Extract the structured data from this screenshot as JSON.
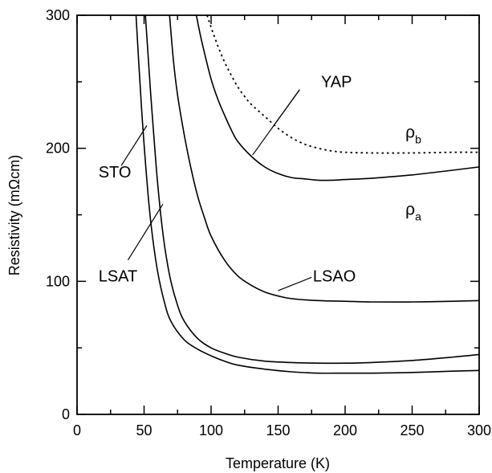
{
  "chart_data": {
    "type": "line",
    "title": "",
    "xlabel": "Temperature (K)",
    "ylabel": "Resistivity (mΩcm)",
    "xlim": [
      0,
      300
    ],
    "ylim": [
      0,
      300
    ],
    "xticks": [
      0,
      50,
      100,
      150,
      200,
      250,
      300
    ],
    "yticks": [
      0,
      100,
      200,
      300
    ],
    "grid": false,
    "legend": "none",
    "series": [
      {
        "name": "STO",
        "style": "solid",
        "x": [
          44,
          46,
          48,
          50,
          53,
          56,
          60,
          65,
          70,
          80,
          90,
          100,
          110,
          120,
          140,
          160,
          180,
          200,
          220,
          250,
          280,
          300
        ],
        "y": [
          300,
          265,
          232,
          203,
          165,
          136,
          108,
          85,
          70,
          56,
          49,
          44,
          40,
          37,
          34,
          32,
          31,
          31,
          31,
          31.5,
          32.5,
          33
        ]
      },
      {
        "name": "LSAT",
        "style": "solid",
        "x": [
          51,
          53,
          55,
          58,
          60,
          63,
          66,
          70,
          75,
          80,
          90,
          100,
          110,
          120,
          140,
          160,
          180,
          200,
          220,
          250,
          280,
          300
        ],
        "y": [
          300,
          270,
          240,
          200,
          175,
          145,
          122,
          100,
          82,
          70,
          57,
          50,
          46,
          43,
          40,
          39,
          38.5,
          38.5,
          39,
          40.5,
          43,
          45
        ]
      },
      {
        "name": "LSAO",
        "style": "solid",
        "x": [
          69,
          72,
          75,
          80,
          85,
          90,
          95,
          100,
          110,
          120,
          130,
          140,
          150,
          160,
          180,
          200,
          220,
          250,
          280,
          300
        ],
        "y": [
          300,
          265,
          240,
          210,
          185,
          164,
          148,
          134,
          116,
          104,
          97,
          92,
          89,
          87,
          85.5,
          85,
          84.5,
          84.5,
          85,
          85.5
        ]
      },
      {
        "name": "YAP ρa",
        "style": "solid",
        "x": [
          89,
          92,
          95,
          100,
          105,
          110,
          115,
          120,
          130,
          140,
          150,
          160,
          170,
          180,
          190,
          200,
          220,
          250,
          280,
          300
        ],
        "y": [
          300,
          285,
          272,
          252,
          237,
          225,
          214,
          205,
          194,
          186,
          181,
          178,
          177,
          176,
          176,
          176.5,
          177.5,
          180,
          183.5,
          186
        ]
      },
      {
        "name": "YAP ρb",
        "style": "dotted",
        "x": [
          97,
          100,
          105,
          110,
          115,
          120,
          125,
          130,
          140,
          150,
          160,
          170,
          180,
          190,
          200,
          220,
          250,
          280,
          300
        ],
        "y": [
          300,
          291,
          277,
          265,
          255,
          246,
          239,
          233,
          224,
          215,
          208,
          203,
          200,
          198,
          197,
          196.5,
          196.5,
          197,
          197
        ]
      }
    ],
    "annotations": [
      {
        "text": "YAP",
        "x": 182,
        "y": 246
      },
      {
        "text": "STO",
        "x": 16,
        "y": 178
      },
      {
        "text": "LSAT",
        "x": 16,
        "y": 100
      },
      {
        "text": "LSAO",
        "x": 176,
        "y": 100
      }
    ],
    "rho_labels": [
      {
        "symbol": "ρ",
        "subscript": "b",
        "x": 245,
        "y": 208
      },
      {
        "symbol": "ρ",
        "subscript": "a",
        "x": 245,
        "y": 150
      }
    ],
    "leaders": [
      {
        "from": [
          166,
          244
        ],
        "to": [
          131,
          195
        ]
      },
      {
        "from": [
          166,
          244
        ],
        "to": [
          146,
          216
        ]
      },
      {
        "from": [
          33,
          187
        ],
        "to": [
          52,
          217
        ]
      },
      {
        "from": [
          38,
          116
        ],
        "to": [
          64,
          158
        ]
      },
      {
        "from": [
          175,
          103
        ],
        "to": [
          150,
          93
        ]
      }
    ]
  }
}
